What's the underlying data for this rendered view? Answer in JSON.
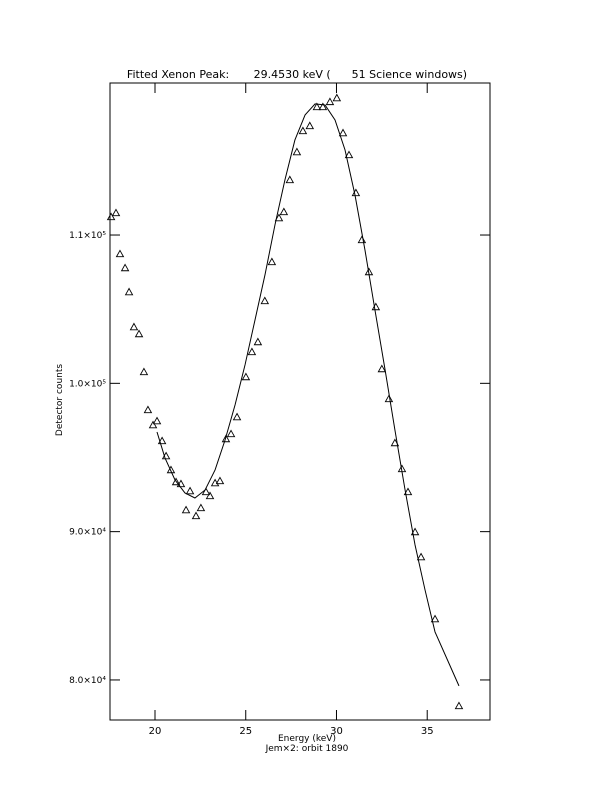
{
  "chart_data": {
    "type": "scatter",
    "title": "Fitted Xenon Peak:       29.4530 keV (      51 Science windows)",
    "x_label": "Energy (keV)",
    "subtitle": "Jem×2: orbit 1890",
    "y_label": "Detector counts",
    "xlim": [
      17.52,
      38.46
    ],
    "ylim": [
      77300,
      120250
    ],
    "xticks": [
      20,
      25,
      30,
      35
    ],
    "yticks": [
      {
        "value": 80000,
        "label": "8.0×10⁴"
      },
      {
        "value": 90000,
        "label": "9.0×10⁴"
      },
      {
        "value": 100000,
        "label": "1.0×10⁵"
      },
      {
        "value": 110000,
        "label": "1.1×10⁵"
      }
    ],
    "grid": false,
    "series": [
      {
        "mode": "markers",
        "color": "#000000",
        "x": [
          17.58,
          17.85,
          18.07,
          18.35,
          18.57,
          18.84,
          19.12,
          19.39,
          19.61,
          19.89,
          20.11,
          20.39,
          20.61,
          20.88,
          21.16,
          21.43,
          21.71,
          21.93,
          22.26,
          22.53,
          22.81,
          23.03,
          23.31,
          23.58,
          23.91,
          24.19,
          24.52,
          25.01,
          25.34,
          25.67,
          26.05,
          26.44,
          26.83,
          27.1,
          27.43,
          27.82,
          28.15,
          28.53,
          28.92,
          29.25,
          29.64,
          30.02,
          30.36,
          30.69,
          31.07,
          31.4,
          31.79,
          32.17,
          32.5,
          32.89,
          33.22,
          33.61,
          33.94,
          34.33,
          34.66,
          35.43,
          36.75
        ],
        "values": [
          111220,
          111490,
          108725,
          107780,
          106160,
          103800,
          103330,
          100770,
          98210,
          97190,
          97460,
          96120,
          95100,
          94160,
          93350,
          93220,
          91460,
          92740,
          91060,
          91600,
          92680,
          92410,
          93280,
          93420,
          96250,
          96590,
          97730,
          100430,
          102120,
          102790,
          105560,
          108190,
          111150,
          111560,
          113720,
          115600,
          117020,
          117360,
          118640,
          118640,
          118980,
          119240,
          116880,
          115400,
          112840,
          109670,
          107510,
          105150,
          100970,
          98950,
          95980,
          94230,
          92680,
          89980,
          88290,
          84110,
          78250
        ]
      },
      {
        "mode": "lines",
        "color": "#000000",
        "x": [
          20.11,
          20.55,
          21.1,
          21.65,
          22.2,
          22.76,
          23.31,
          23.86,
          24.41,
          24.96,
          25.51,
          26.06,
          26.61,
          27.16,
          27.71,
          28.27,
          28.82,
          29.37,
          29.92,
          30.47,
          31.02,
          31.57,
          32.12,
          32.68,
          33.22,
          33.78,
          34.33,
          34.88,
          35.43,
          36.75
        ],
        "values": [
          96720,
          94970,
          93490,
          92610,
          92270,
          92810,
          94160,
          96180,
          98540,
          101240,
          104270,
          107310,
          110680,
          113720,
          116410,
          118100,
          118840,
          118770,
          117760,
          115740,
          112700,
          108990,
          104950,
          100900,
          96860,
          92810,
          89100,
          86070,
          83240,
          79600
        ]
      }
    ]
  }
}
